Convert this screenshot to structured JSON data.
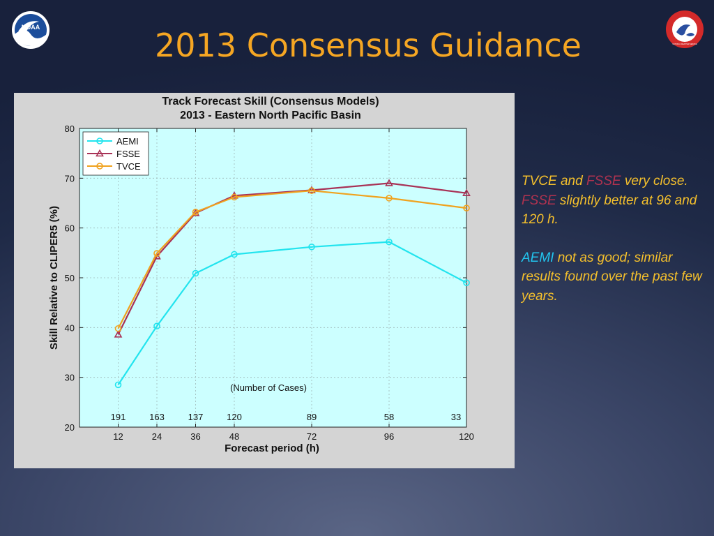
{
  "slide": {
    "title": "2013 Consensus Guidance"
  },
  "logos": {
    "left_icon": "noaa-logo",
    "left_text": "NOAA",
    "right_icon": "nws-logo",
    "right_text": "NATIONAL WEATHER SERVICE"
  },
  "notes": {
    "p1": {
      "tvce": "TVCE",
      "and": " and ",
      "fsse1": "FSSE",
      "very_close": " very close. ",
      "fsse2": "FSSE",
      "rest": " slightly better at 96 and 120 h."
    },
    "p2": {
      "aemi": "AEMI",
      "rest": " not as good; similar results found over the past few years."
    }
  },
  "colors": {
    "title": "#f5a623",
    "notes_text": "#f5c02c",
    "fsse_text": "#b0324f",
    "aemi_text": "#22c4ee"
  },
  "chart_data": {
    "type": "line",
    "title": "Track Forecast Skill (Consensus Models)",
    "subtitle": "2013 - Eastern North Pacific Basin",
    "xlabel": "Forecast period (h)",
    "ylabel": "Skill Relative to CLIPER5 (%)",
    "x": [
      12,
      24,
      36,
      48,
      72,
      96,
      120
    ],
    "xlim": [
      0,
      120
    ],
    "ylim": [
      20,
      80
    ],
    "yticks": [
      20,
      30,
      40,
      50,
      60,
      70,
      80
    ],
    "grid": true,
    "legend_position": "top-left",
    "series": [
      {
        "name": "AEMI",
        "color": "#22e4ee",
        "marker": "circle",
        "values": [
          28.5,
          40.3,
          50.9,
          54.7,
          56.2,
          57.2,
          49.0
        ]
      },
      {
        "name": "FSSE",
        "color": "#a83256",
        "marker": "triangle",
        "values": [
          38.6,
          54.3,
          63.0,
          66.5,
          67.6,
          69.0,
          67.0
        ]
      },
      {
        "name": "TVCE",
        "color": "#f0a21e",
        "marker": "circle",
        "values": [
          39.8,
          54.9,
          63.2,
          66.2,
          67.5,
          66.0,
          64.0
        ]
      }
    ],
    "annotation": "(Number of Cases)",
    "case_counts": [
      191,
      163,
      137,
      120,
      89,
      58,
      33
    ],
    "plot_background": "#ccffff"
  }
}
